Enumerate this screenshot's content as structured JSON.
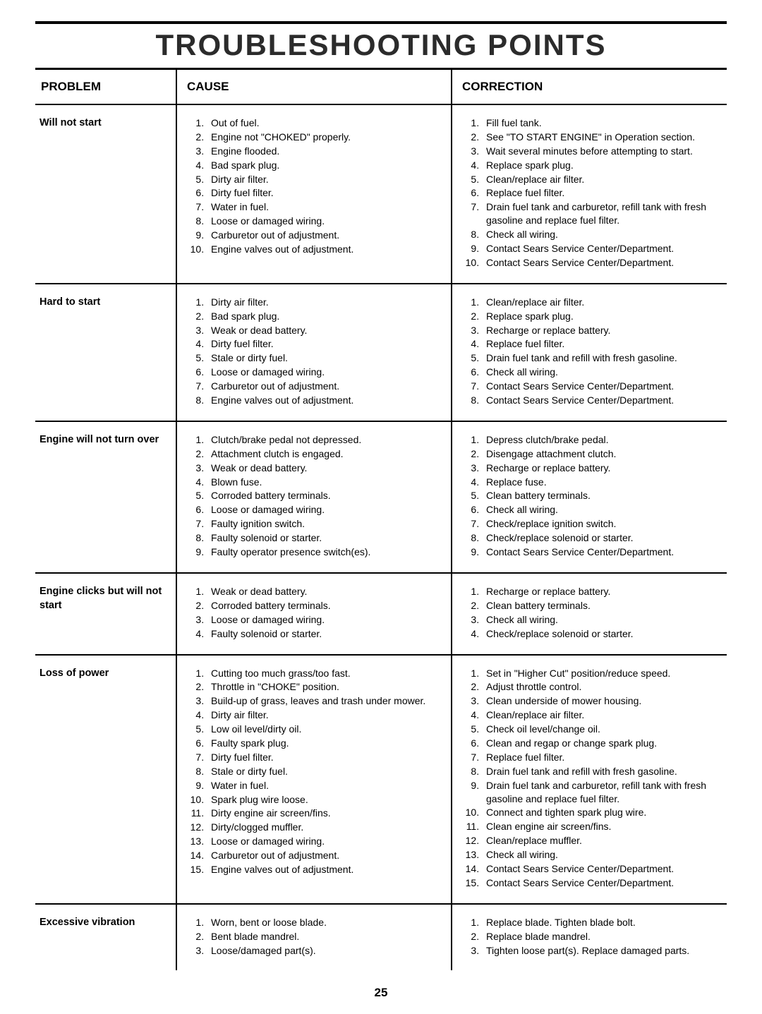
{
  "title": "TROUBLESHOOTING POINTS",
  "page_number": "25",
  "headers": {
    "problem": "PROBLEM",
    "cause": "CAUSE",
    "correction": "CORRECTION"
  },
  "rows": [
    {
      "problem": "Will not start",
      "causes": [
        "Out of fuel.",
        "Engine not \"CHOKED\" properly.",
        "Engine flooded.",
        "Bad spark plug.",
        "Dirty air filter.",
        "Dirty fuel filter.",
        "Water in fuel.",
        "Loose or damaged wiring.",
        "Carburetor out of adjustment.",
        "Engine valves out of adjustment."
      ],
      "corrections": [
        "Fill fuel tank.",
        "See \"TO START ENGINE\" in Operation section.",
        "Wait several minutes before attempting to start.",
        "Replace spark plug.",
        "Clean/replace air filter.",
        "Replace fuel filter.",
        "Drain fuel tank and carburetor, refill tank with fresh gasoline and replace fuel filter.",
        "Check all wiring.",
        "Contact Sears Service Center/Department.",
        "Contact Sears Service Center/Department."
      ]
    },
    {
      "problem": "Hard to start",
      "causes": [
        "Dirty air filter.",
        "Bad spark plug.",
        "Weak or dead battery.",
        "Dirty fuel filter.",
        "Stale or dirty fuel.",
        "Loose or damaged wiring.",
        "Carburetor out of adjustment.",
        "Engine valves out of adjustment."
      ],
      "corrections": [
        "Clean/replace air filter.",
        "Replace spark plug.",
        "Recharge or replace battery.",
        "Replace fuel filter.",
        "Drain fuel tank and refill with fresh gasoline.",
        "Check all wiring.",
        "Contact Sears Service Center/Department.",
        "Contact Sears Service Center/Department."
      ]
    },
    {
      "problem": "Engine will not turn over",
      "causes": [
        "Clutch/brake pedal not depressed.",
        "Attachment clutch is engaged.",
        "Weak or dead battery.",
        "Blown fuse.",
        "Corroded battery terminals.",
        "Loose or damaged wiring.",
        "Faulty ignition switch.",
        "Faulty solenoid or starter.",
        "Faulty operator presence switch(es)."
      ],
      "corrections": [
        "Depress clutch/brake pedal.",
        "Disengage attachment clutch.",
        "Recharge or replace battery.",
        "Replace fuse.",
        "Clean battery terminals.",
        "Check all wiring.",
        "Check/replace ignition switch.",
        "Check/replace solenoid or starter.",
        "Contact Sears Service Center/Department."
      ]
    },
    {
      "problem": "Engine clicks but will not start",
      "causes": [
        "Weak or dead battery.",
        "Corroded battery terminals.",
        "Loose or damaged wiring.",
        "Faulty solenoid or starter."
      ],
      "corrections": [
        "Recharge or replace battery.",
        "Clean battery terminals.",
        "Check all wiring.",
        "Check/replace solenoid or starter."
      ]
    },
    {
      "problem": "Loss of power",
      "causes": [
        "Cutting too much grass/too fast.",
        "Throttle in \"CHOKE\" position.",
        "Build-up of grass, leaves and trash under mower.",
        "Dirty air filter.",
        "Low oil level/dirty oil.",
        "Faulty spark plug.",
        "Dirty fuel filter.",
        "Stale or dirty fuel.",
        "Water in fuel.",
        "Spark plug wire loose.",
        "Dirty engine air screen/fins.",
        "Dirty/clogged muffler.",
        "Loose or damaged wiring.",
        "Carburetor out of adjustment.",
        "Engine valves out of adjustment."
      ],
      "corrections": [
        "Set in \"Higher Cut\" position/reduce speed.",
        "Adjust throttle control.",
        "Clean underside of mower housing.",
        "Clean/replace air filter.",
        "Check oil level/change oil.",
        "Clean and regap or change spark plug.",
        "Replace fuel filter.",
        "Drain fuel tank and refill with fresh gasoline.",
        "Drain fuel tank and carburetor, refill tank with fresh gasoline and replace fuel filter.",
        "Connect and tighten spark plug wire.",
        "Clean engine air screen/fins.",
        "Clean/replace muffler.",
        "Check all wiring.",
        "Contact Sears Service Center/Department.",
        "Contact Sears Service Center/Department."
      ]
    },
    {
      "problem": "Excessive vibration",
      "causes": [
        "Worn, bent or loose blade.",
        "Bent blade mandrel.",
        "Loose/damaged part(s)."
      ],
      "corrections": [
        "Replace blade.  Tighten blade bolt.",
        "Replace blade mandrel.",
        "Tighten loose part(s).  Replace damaged parts."
      ]
    }
  ]
}
